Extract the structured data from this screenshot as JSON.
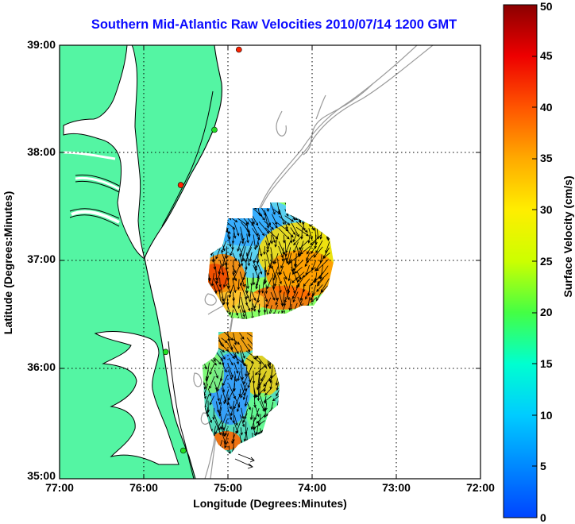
{
  "title": "Southern Mid-Atlantic Raw Velocities 2010/07/14 1200 GMT",
  "xlabel": "Longitude (Degrees:Minutes)",
  "ylabel": "Latitude (Degrees:Minutes)",
  "colorbar": {
    "label": "Surface Velocity (cm/s)",
    "ticks": [
      "0",
      "5",
      "10",
      "15",
      "20",
      "25",
      "30",
      "35",
      "40",
      "45",
      "50"
    ],
    "range": [
      0,
      50
    ]
  },
  "axes": {
    "x_ticks": [
      "77:00",
      "76:00",
      "75:00",
      "74:00",
      "73:00",
      "72:00"
    ],
    "y_ticks": [
      "39:00",
      "38:00",
      "37:00",
      "36:00",
      "35:00"
    ],
    "lon_range": [
      -77,
      -72
    ],
    "lat_range": [
      35,
      39
    ],
    "grid": true
  },
  "colors": {
    "land": "#54f5a3",
    "coast": "#000000",
    "bathymetry": "#9a9a9a",
    "title": "#0a0aff",
    "station_green": "#22dd22",
    "station_red": "#ff2200"
  },
  "stations": [
    {
      "lon": -74.87,
      "lat": 38.96,
      "status": "red"
    },
    {
      "lon": -75.16,
      "lat": 38.22,
      "status": "green"
    },
    {
      "lon": -75.56,
      "lat": 37.71,
      "status": "red"
    },
    {
      "lon": -75.74,
      "lat": 36.17,
      "status": "green"
    },
    {
      "lon": -75.53,
      "lat": 35.26,
      "status": "green"
    }
  ],
  "chart_data": {
    "type": "vector-field",
    "units": "cm/s",
    "regions": [
      {
        "name": "north",
        "lon_min": -75.3,
        "lon_max": -73.8,
        "lat_min": 36.55,
        "lat_max": 37.55
      },
      {
        "name": "south",
        "lon_min": -75.3,
        "lon_max": -74.6,
        "lat_min": 35.25,
        "lat_max": 36.35
      }
    ],
    "speed_hotspots": [
      {
        "lon": -74.1,
        "lat": 36.82,
        "speed": 34
      },
      {
        "lon": -75.1,
        "lat": 36.63,
        "speed": 32
      },
      {
        "lon": -74.6,
        "lat": 36.95,
        "speed": 27
      },
      {
        "lon": -74.65,
        "lat": 37.3,
        "speed": 12
      },
      {
        "lon": -74.8,
        "lat": 36.1,
        "speed": 27
      },
      {
        "lon": -75.0,
        "lat": 35.9,
        "speed": 10
      },
      {
        "lon": -74.7,
        "lat": 35.75,
        "speed": 20
      },
      {
        "lon": -75.0,
        "lat": 35.3,
        "speed": 38
      }
    ],
    "dominant_direction": "southward"
  }
}
